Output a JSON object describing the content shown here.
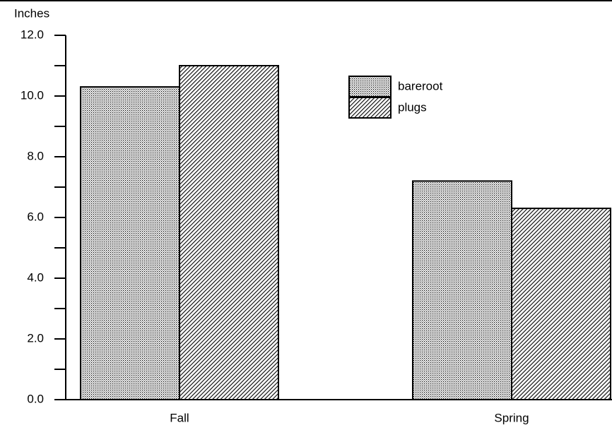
{
  "chart_data": {
    "type": "bar",
    "y_axis_label": "Inches",
    "categories": [
      "Fall",
      "Spring"
    ],
    "series": [
      {
        "name": "bareroot",
        "color": "#000000",
        "pattern": "dots",
        "values": [
          10.3,
          7.2
        ]
      },
      {
        "name": "plugs",
        "color": "#000000",
        "pattern": "hatch",
        "values": [
          11.0,
          6.3
        ]
      }
    ],
    "ylim": [
      0,
      12
    ],
    "yticks": [
      {
        "value": 0,
        "label": "0.0"
      },
      {
        "value": 2,
        "label": "2.0"
      },
      {
        "value": 4,
        "label": "4.0"
      },
      {
        "value": 6,
        "label": "6.0"
      },
      {
        "value": 8,
        "label": "8.0"
      },
      {
        "value": 10,
        "label": "10.0"
      },
      {
        "value": 12,
        "label": "12.0"
      }
    ],
    "yticks_minor": [
      1,
      3,
      5,
      7,
      9,
      11
    ],
    "legend": "top-right"
  }
}
